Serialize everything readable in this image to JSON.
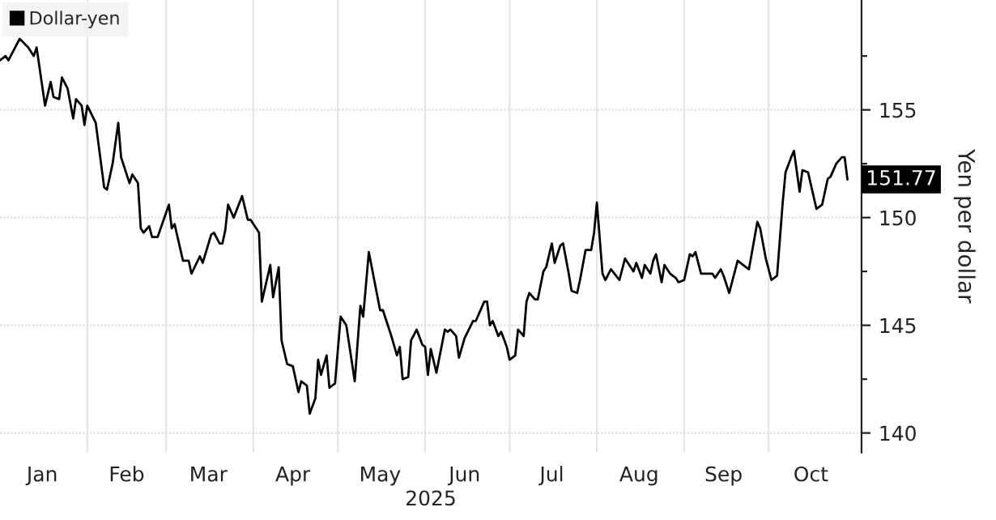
{
  "chart_data": {
    "type": "line",
    "xlabel": "2025",
    "y2label": "Yen per dollar",
    "x": [
      "2025-01-01",
      "2025-01-03",
      "2025-01-04",
      "2025-01-08",
      "2025-01-11",
      "2025-01-13",
      "2025-01-14",
      "2025-01-17",
      "2025-01-19",
      "2025-01-20",
      "2025-01-22",
      "2025-01-23",
      "2025-01-25",
      "2025-01-27",
      "2025-01-28",
      "2025-01-30",
      "2025-01-31",
      "2025-02-01",
      "2025-02-04",
      "2025-02-07",
      "2025-02-08",
      "2025-02-10",
      "2025-02-12",
      "2025-02-13",
      "2025-02-16",
      "2025-02-17",
      "2025-02-19",
      "2025-02-20",
      "2025-02-21",
      "2025-02-23",
      "2025-02-24",
      "2025-02-26",
      "2025-03-02",
      "2025-03-03",
      "2025-03-04",
      "2025-03-07",
      "2025-03-09",
      "2025-03-10",
      "2025-03-13",
      "2025-03-14",
      "2025-03-17",
      "2025-03-18",
      "2025-03-20",
      "2025-03-21",
      "2025-03-22",
      "2025-03-23",
      "2025-03-25",
      "2025-03-28",
      "2025-03-30",
      "2025-03-31",
      "2025-04-03",
      "2025-04-04",
      "2025-04-07",
      "2025-04-08",
      "2025-04-10",
      "2025-04-11",
      "2025-04-13",
      "2025-04-15",
      "2025-04-17",
      "2025-04-18",
      "2025-04-20",
      "2025-04-21",
      "2025-04-23",
      "2025-04-24",
      "2025-04-25",
      "2025-04-27",
      "2025-04-28",
      "2025-04-30",
      "2025-05-02",
      "2025-05-04",
      "2025-05-07",
      "2025-05-09",
      "2025-05-10",
      "2025-05-12",
      "2025-05-16",
      "2025-05-17",
      "2025-05-19",
      "2025-05-20",
      "2025-05-22",
      "2025-05-23",
      "2025-05-24",
      "2025-05-26",
      "2025-05-27",
      "2025-05-29",
      "2025-05-31",
      "2025-06-01",
      "2025-06-02",
      "2025-06-03",
      "2025-06-05",
      "2025-06-08",
      "2025-06-09",
      "2025-06-10",
      "2025-06-12",
      "2025-06-13",
      "2025-06-15",
      "2025-06-18",
      "2025-06-19",
      "2025-06-22",
      "2025-06-23",
      "2025-06-24",
      "2025-06-25",
      "2025-06-27",
      "2025-06-28",
      "2025-06-30",
      "2025-07-01",
      "2025-07-03",
      "2025-07-04",
      "2025-07-06",
      "2025-07-07",
      "2025-07-08",
      "2025-07-10",
      "2025-07-11",
      "2025-07-13",
      "2025-07-14",
      "2025-07-16",
      "2025-07-17",
      "2025-07-19",
      "2025-07-20",
      "2025-07-22",
      "2025-07-23",
      "2025-07-25",
      "2025-07-26",
      "2025-07-28",
      "2025-07-30",
      "2025-07-31",
      "2025-08-01",
      "2025-08-03",
      "2025-08-04",
      "2025-08-06",
      "2025-08-09",
      "2025-08-11",
      "2025-08-13",
      "2025-08-14",
      "2025-08-15",
      "2025-08-17",
      "2025-08-18",
      "2025-08-20",
      "2025-08-21",
      "2025-08-22",
      "2025-08-24",
      "2025-08-25",
      "2025-08-27",
      "2025-08-29",
      "2025-08-30",
      "2025-09-01",
      "2025-09-03",
      "2025-09-04",
      "2025-09-05",
      "2025-09-07",
      "2025-09-10",
      "2025-09-11",
      "2025-09-12",
      "2025-09-14",
      "2025-09-15",
      "2025-09-17",
      "2025-09-20",
      "2025-09-23",
      "2025-09-24",
      "2025-09-27",
      "2025-09-28",
      "2025-09-30",
      "2025-10-02",
      "2025-10-04",
      "2025-10-06",
      "2025-10-07",
      "2025-10-09",
      "2025-10-10",
      "2025-10-12",
      "2025-10-13",
      "2025-10-15",
      "2025-10-18",
      "2025-10-20",
      "2025-10-22",
      "2025-10-23",
      "2025-10-25",
      "2025-10-27",
      "2025-10-28",
      "2025-10-29"
    ],
    "series": [
      {
        "name": "Dollar-yen",
        "color": "#000000",
        "values": [
          157.3,
          157.5,
          157.3,
          158.3,
          157.9,
          157.5,
          157.9,
          155.2,
          156.3,
          155.6,
          155.5,
          156.5,
          156.0,
          154.6,
          155.5,
          155.2,
          154.3,
          155.2,
          154.4,
          151.4,
          151.3,
          152.5,
          154.4,
          152.8,
          151.6,
          152.0,
          151.6,
          149.5,
          149.3,
          149.6,
          149.1,
          149.1,
          150.6,
          149.5,
          149.7,
          148.0,
          148.0,
          147.4,
          148.2,
          147.9,
          149.2,
          149.3,
          148.8,
          148.8,
          149.4,
          150.6,
          150.0,
          151.0,
          149.9,
          149.9,
          149.3,
          146.1,
          147.8,
          146.3,
          147.7,
          144.3,
          143.2,
          143.1,
          141.9,
          142.4,
          142.2,
          140.9,
          141.6,
          143.4,
          142.7,
          143.6,
          142.1,
          142.3,
          145.4,
          145.0,
          142.4,
          145.9,
          145.4,
          148.4,
          145.7,
          145.7,
          144.9,
          144.5,
          143.6,
          144.0,
          142.5,
          142.6,
          144.3,
          144.8,
          144.1,
          144.0,
          142.7,
          143.9,
          142.8,
          144.8,
          144.7,
          144.8,
          144.5,
          143.5,
          144.4,
          145.2,
          145.2,
          146.1,
          146.1,
          145.0,
          145.2,
          144.5,
          144.7,
          144.0,
          143.4,
          143.6,
          144.8,
          144.5,
          146.1,
          146.5,
          146.2,
          146.2,
          147.5,
          147.7,
          148.8,
          147.9,
          148.7,
          148.8,
          147.4,
          146.6,
          146.5,
          147.1,
          148.5,
          148.5,
          149.3,
          150.7,
          147.4,
          147.1,
          147.6,
          147.1,
          148.1,
          147.7,
          147.5,
          147.9,
          147.2,
          147.8,
          147.4,
          148.0,
          148.3,
          147.0,
          147.8,
          147.4,
          147.2,
          147.0,
          147.1,
          148.3,
          148.2,
          148.4,
          147.4,
          147.4,
          147.4,
          147.2,
          147.6,
          147.3,
          146.5,
          148.0,
          147.7,
          147.6,
          149.8,
          149.5,
          148.1,
          147.1,
          147.3,
          150.7,
          152.1,
          152.8,
          153.1,
          151.2,
          152.2,
          152.1,
          150.4,
          150.6,
          151.8,
          151.9,
          152.5,
          152.8,
          152.8,
          151.77
        ]
      }
    ],
    "xlim": [
      "2025-01-01",
      "2025-11-03"
    ],
    "xticks": [
      {
        "value": "2025-01-16",
        "label": "Jan"
      },
      {
        "value": "2025-02-01",
        "label": null
      },
      {
        "value": "2025-02-15",
        "label": "Feb"
      },
      {
        "value": "2025-03-01",
        "label": null
      },
      {
        "value": "2025-03-16",
        "label": "Mar"
      },
      {
        "value": "2025-04-01",
        "label": null
      },
      {
        "value": "2025-04-15",
        "label": "Apr"
      },
      {
        "value": "2025-05-01",
        "label": null
      },
      {
        "value": "2025-05-16",
        "label": "May"
      },
      {
        "value": "2025-06-01",
        "label": null
      },
      {
        "value": "2025-06-15",
        "label": "Jun"
      },
      {
        "value": "2025-07-01",
        "label": null
      },
      {
        "value": "2025-07-16",
        "label": "Jul"
      },
      {
        "value": "2025-08-01",
        "label": null
      },
      {
        "value": "2025-08-16",
        "label": "Aug"
      },
      {
        "value": "2025-09-01",
        "label": null
      },
      {
        "value": "2025-09-15",
        "label": "Sep"
      },
      {
        "value": "2025-10-01",
        "label": null
      },
      {
        "value": "2025-10-16",
        "label": "Oct"
      }
    ],
    "ylim": [
      139.1,
      160.1
    ],
    "yticks": [
      140,
      {
        "value": 142.5,
        "label": null
      },
      145,
      {
        "value": 147.5,
        "label": null
      },
      150,
      {
        "value": 152.5,
        "label": null
      },
      155,
      {
        "value": 157.5,
        "label": null
      }
    ],
    "annotations": [
      {
        "text": "151.77",
        "x": "2025-10-29",
        "y": 151.77
      }
    ],
    "grid": true,
    "legend": "top left"
  }
}
